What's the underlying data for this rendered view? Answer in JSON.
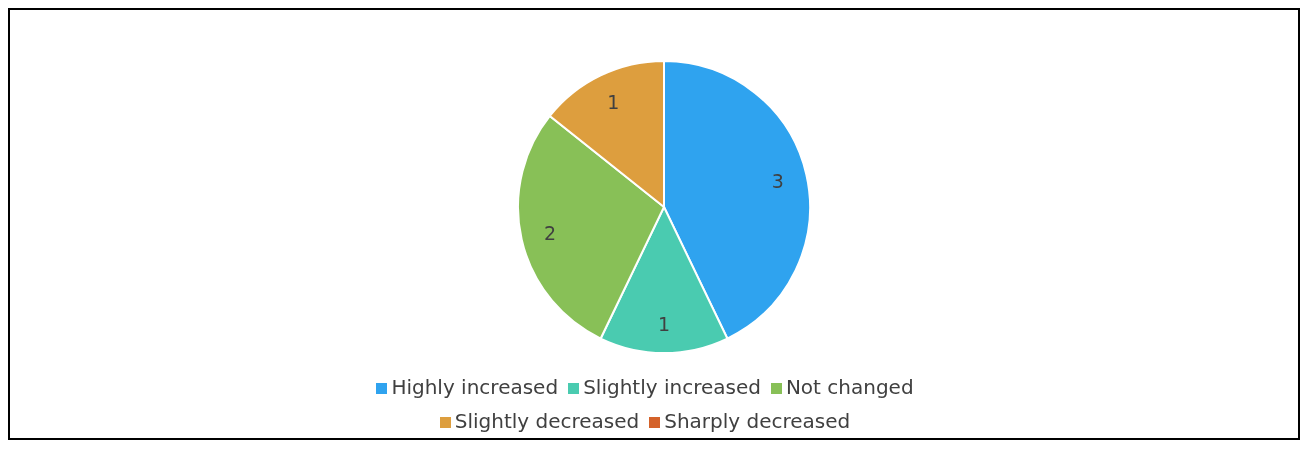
{
  "chart_data": {
    "type": "pie",
    "categories": [
      "Highly increased",
      "Slightly increased",
      "Not changed",
      "Slightly decreased",
      "Sharply decreased"
    ],
    "values": [
      3,
      1,
      2,
      1,
      0
    ],
    "colors": [
      "#2fa3ef",
      "#4acbb0",
      "#88c057",
      "#dd9e3e",
      "#d4622a"
    ],
    "value_labels": [
      "3",
      "1",
      "2",
      "1",
      null
    ],
    "legend": "bottom"
  }
}
